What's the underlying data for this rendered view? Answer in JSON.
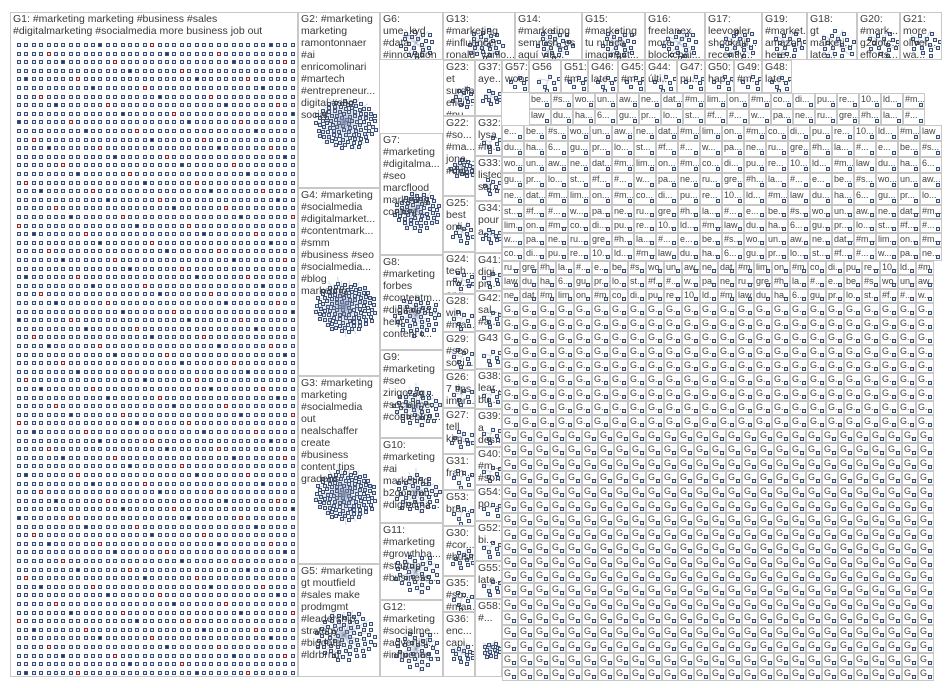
{
  "graph": {
    "groups": [
      {
        "id": "G1",
        "label": "G1: #marketing marketing #business #sales\n#digitalmarketing #socialmedia more business job out",
        "kind": "grid"
      },
      {
        "id": "G2",
        "label": "G2: #marketing\nmarketing\nramontonnaer\n#ai\nenricomolinari\n#martech\n#entrepreneur...\ndigital #seo\nsocial",
        "kind": "cluster"
      },
      {
        "id": "G6",
        "label": "G6:\nume_kyd\n#data\n#innovation\n#marketing\n#smartdata\n#digitaltra...\n#fintech\n#visualana...",
        "kind": "cluster"
      },
      {
        "id": "G13",
        "label": "G13:\n#marketing\n#influencer\nronald_vanlo...",
        "kind": "cluster"
      },
      {
        "id": "G14",
        "label": "G14:\n#marketing\nsemrush_es\naquí vía...",
        "kind": "cluster"
      },
      {
        "id": "G15",
        "label": "G15:\n#marketing\ntu nunca\nimaginast...",
        "kind": "cluster"
      },
      {
        "id": "G16",
        "label": "G16:\nfreelanex\nmore\nblockchai...",
        "kind": "cluster"
      },
      {
        "id": "G17",
        "label": "G17:\nleevogler\nshockajil...\nrecently...",
        "kind": "cluster"
      },
      {
        "id": "G19",
        "label": "G19:\n#market...\namazon\nhere...",
        "kind": "cluster"
      },
      {
        "id": "G18",
        "label": "G18:\ngt\nmarketi...\nlate...",
        "kind": "cluster"
      },
      {
        "id": "G20",
        "label": "G20:\n#mark...\ng2dotc...\nefforts...",
        "kind": "cluster"
      },
      {
        "id": "G21",
        "label": "G21:\nmore\noliver...\nwa...",
        "kind": "cluster"
      },
      {
        "id": "G4",
        "label": "G4: #marketing\n#socialmedia\n#digitalmarket...\n#contentmark...\n#smm\n#business #seo\n#socialmedia...\n#blog\nmarketing",
        "kind": "cluster"
      },
      {
        "id": "G7",
        "label": "G7:\n#marketing\n#digitalma...\n#seo\nmarcflood\nmarketing\ncontent...",
        "kind": "cluster"
      },
      {
        "id": "G8",
        "label": "G8:\n#marketing\nforbes\n#contentm...\n#digitalma...\nhelp\ncontent t...",
        "kind": "cluster"
      },
      {
        "id": "G9",
        "label": "G9:\n#marketing\n#seo\nzirigozag...\n#socialme...\n#contentm...",
        "kind": "cluster"
      },
      {
        "id": "G3",
        "label": "G3: #marketing\nmarketing\n#socialmedia\nout\nnealschaffer\ncreate\n#business\ncontent tips\ngradeus",
        "kind": "cluster"
      },
      {
        "id": "G10",
        "label": "G10:\n#marketing\n#ai\nmarketing\nb2gommu...\n#digitalma...",
        "kind": "cluster"
      },
      {
        "id": "G11",
        "label": "G11:\n#marketing\n#growthha...\n#startup\n#business...",
        "kind": "cluster"
      },
      {
        "id": "G5",
        "label": "G5: #marketing\ngt moutfield\n#sales make\nprodmgmt\n#leadership\nstrategy\n#bigdata\n#ldrbrnd",
        "kind": "cluster"
      },
      {
        "id": "G12",
        "label": "G12:\n#marketing\n#socialme...\n#advertisi...\n#influence...",
        "kind": "cluster"
      },
      {
        "id": "G23",
        "label": "G23:\net surdia\nefici...\n#pu...",
        "kind": "cluster"
      },
      {
        "id": "G37",
        "label": "G37:\naye...",
        "kind": "cluster"
      },
      {
        "id": "G57",
        "label": "G57:\nwoo...",
        "kind": "cluster"
      },
      {
        "id": "G56",
        "label": "G56",
        "kind": "cluster"
      },
      {
        "id": "G51",
        "label": "G51:\n#m...",
        "kind": "cluster"
      },
      {
        "id": "G46",
        "label": "G46:\nlate...",
        "kind": "cluster"
      },
      {
        "id": "G45",
        "label": "G45:\n#m...",
        "kind": "cluster"
      },
      {
        "id": "G44",
        "label": "G44:\núlti...",
        "kind": "cluster"
      },
      {
        "id": "G47",
        "label": "G47:\npu...",
        "kind": "cluster"
      },
      {
        "id": "G50",
        "label": "G50:\nhap...",
        "kind": "cluster"
      },
      {
        "id": "G49",
        "label": "G49:\n#m...",
        "kind": "cluster"
      },
      {
        "id": "G48",
        "label": "G48:\nlate...",
        "kind": "cluster"
      },
      {
        "id": "G32",
        "label": "G32:\nlysa\n#m...",
        "kind": "cluster"
      },
      {
        "id": "G22",
        "label": "G22:\n#so...\n#ma...\njona...\n#dig...",
        "kind": "cluster"
      },
      {
        "id": "G33",
        "label": "G33:\nlisted\nsat...",
        "kind": "cluster"
      },
      {
        "id": "G25",
        "label": "G25:\nbest\nonli...",
        "kind": "cluster"
      },
      {
        "id": "G34",
        "label": "G34:\npour\na...",
        "kind": "cluster"
      },
      {
        "id": "G24",
        "label": "G24:\ntech...\nmw...\nang...",
        "kind": "cluster"
      },
      {
        "id": "G41",
        "label": "G41:\ndigi...\npr...",
        "kind": "cluster"
      },
      {
        "id": "G42",
        "label": "G42:\nsal...\n#a...",
        "kind": "cluster"
      },
      {
        "id": "G28",
        "label": "G28:\nwin\n#ma...",
        "kind": "cluster"
      },
      {
        "id": "G43",
        "label": "G43",
        "kind": "cluster"
      },
      {
        "id": "G29",
        "label": "G29:\n#seo\nsoci...",
        "kind": "cluster"
      },
      {
        "id": "G38",
        "label": "G38:\nlear...\nbu...",
        "kind": "cluster"
      },
      {
        "id": "G26",
        "label": "G26:\n7 tips\nimpr...",
        "kind": "cluster"
      },
      {
        "id": "G39",
        "label": "G39:\na\ndes...",
        "kind": "cluster"
      },
      {
        "id": "G27",
        "label": "G27:\ntell\nkim...",
        "kind": "cluster"
      },
      {
        "id": "G40",
        "label": "G40:\n#m...\n#so...",
        "kind": "cluster"
      },
      {
        "id": "G31",
        "label": "G31:\nfran...",
        "kind": "cluster"
      },
      {
        "id": "G54",
        "label": "G54:\npo...",
        "kind": "cluster"
      },
      {
        "id": "G53",
        "label": "G53:\nbra...",
        "kind": "cluster"
      },
      {
        "id": "G30",
        "label": "G30:\n#cor...\n#business...",
        "kind": "cluster"
      },
      {
        "id": "G52",
        "label": "G52:\nbi...",
        "kind": "cluster"
      },
      {
        "id": "G35",
        "label": "G35:\n#so...\n#ma...",
        "kind": "cluster"
      },
      {
        "id": "G55",
        "label": "G55:\nlate...",
        "kind": "cluster"
      },
      {
        "id": "G36",
        "label": "G36:\nenc...\ncapi...",
        "kind": "cluster"
      },
      {
        "id": "G58",
        "label": "G58:\n#...",
        "kind": "cluster"
      }
    ],
    "small_group_label": "G...",
    "small_group_samples": [
      "be...",
      "#s...",
      "wo...",
      "un...",
      "aw...",
      "ne...",
      "dat...",
      "#m...",
      "lim...",
      "on...",
      "#m...",
      "co...",
      "di...",
      "pu...",
      "re...",
      "10...",
      "ld...",
      "#m...",
      "law",
      "du...",
      "ha...",
      "6...",
      "gu...",
      "pr...",
      "lo...",
      "st...",
      "#f...",
      "#...",
      "w...",
      "pa...",
      "ne...",
      "ru...",
      "gre...",
      "#h...",
      "la...",
      "#...",
      "e..."
    ]
  }
}
